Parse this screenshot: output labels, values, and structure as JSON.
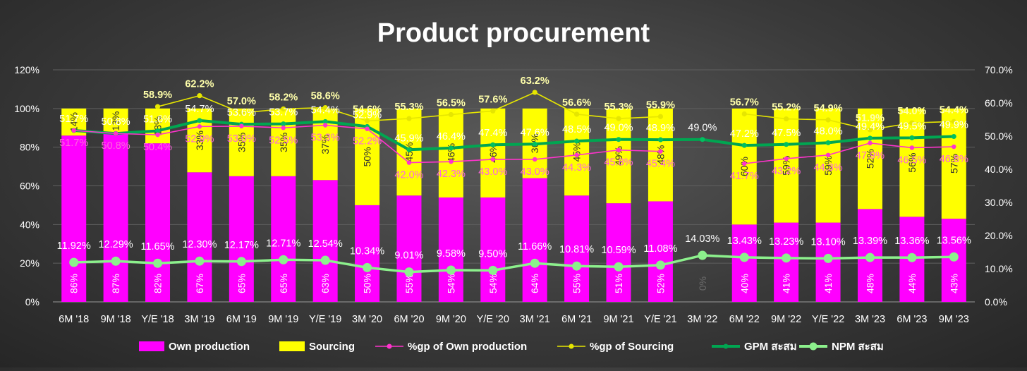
{
  "chart_data": {
    "type": "bar",
    "title": "Product procurement",
    "categories": [
      "6M '18",
      "9M '18",
      "Y/E '18",
      "3M '19",
      "6M '19",
      "9M '19",
      "Y/E '19",
      "3M '20",
      "6M '20",
      "9M '20",
      "Y/E '20",
      "3M '21",
      "6M '21",
      "9M '21",
      "Y/E '21",
      "3M '22",
      "6M '22",
      "9M '22",
      "Y/E '22",
      "3M '23",
      "6M '23",
      "9M '23"
    ],
    "left_axis": {
      "min": 0,
      "max": 1.2,
      "ticks": [
        "0%",
        "20%",
        "40%",
        "60%",
        "80%",
        "100%",
        "120%"
      ]
    },
    "right_axis": {
      "min": 0,
      "max": 0.7,
      "ticks": [
        "0.0%",
        "10.0%",
        "20.0%",
        "30.0%",
        "40.0%",
        "50.0%",
        "60.0%",
        "70.0%"
      ]
    },
    "series": [
      {
        "name": "Own production",
        "kind": "stacked-bar",
        "axis": "left",
        "color": "#ff00ff",
        "values": [
          0.86,
          0.87,
          0.82,
          0.67,
          0.65,
          0.65,
          0.63,
          0.5,
          0.55,
          0.54,
          0.54,
          0.64,
          0.55,
          0.51,
          0.52,
          0.0,
          0.4,
          0.41,
          0.41,
          0.48,
          0.44,
          0.43
        ],
        "labels": [
          "86%",
          "87%",
          "82%",
          "67%",
          "65%",
          "65%",
          "63%",
          "50%",
          "55%",
          "54%",
          "54%",
          "64%",
          "55%",
          "51%",
          "52%",
          "0%",
          "40%",
          "41%",
          "41%",
          "48%",
          "44%",
          "43%"
        ]
      },
      {
        "name": "Sourcing",
        "kind": "stacked-bar",
        "axis": "left",
        "color": "#ffff00",
        "values": [
          0.14,
          0.13,
          0.18,
          0.33,
          0.35,
          0.35,
          0.37,
          0.5,
          0.45,
          0.46,
          0.46,
          0.36,
          0.45,
          0.49,
          0.48,
          null,
          0.6,
          0.59,
          0.59,
          0.52,
          0.56,
          0.57
        ],
        "labels": [
          "14%",
          "13%",
          "18%",
          "33%",
          "35%",
          "35%",
          "37%",
          "50%",
          "45%",
          "46%",
          "46%",
          "36%",
          "45%",
          "49%",
          "48%",
          "",
          "60%",
          "59%",
          "59%",
          "52%",
          "56%",
          "57%"
        ]
      },
      {
        "name": "%gp of Own production",
        "kind": "line",
        "axis": "right",
        "color": "#ff33cc",
        "values": [
          0.517,
          0.508,
          0.504,
          0.529,
          0.53,
          0.525,
          0.533,
          0.522,
          0.42,
          0.423,
          0.43,
          0.43,
          0.443,
          0.458,
          0.454,
          null,
          0.417,
          0.432,
          0.443,
          0.479,
          0.465,
          0.468
        ],
        "labels": [
          "51.7%",
          "50.8%",
          "50.4%",
          "52.9%",
          "53.0%",
          "52.5%",
          "53.3%",
          "52.2%",
          "42.0%",
          "42.3%",
          "43.0%",
          "43.0%",
          "44.3%",
          "45.8%",
          "45.4%",
          "",
          "41.7%",
          "43.2%",
          "44.3%",
          "47.9%",
          "46.5%",
          "46.8%"
        ]
      },
      {
        "name": "%gp of Sourcing",
        "kind": "line",
        "axis": "right",
        "color": "#e6e600",
        "values": [
          null,
          null,
          0.589,
          0.622,
          0.57,
          0.582,
          0.586,
          0.546,
          0.553,
          0.565,
          0.576,
          0.632,
          0.566,
          0.553,
          0.559,
          null,
          0.567,
          0.552,
          0.549,
          0.519,
          0.54,
          0.544
        ],
        "labels": [
          "",
          "",
          "58.9%",
          "62.2%",
          "57.0%",
          "58.2%",
          "58.6%",
          "54.6%",
          "55.3%",
          "56.5%",
          "57.6%",
          "63.2%",
          "56.6%",
          "55.3%",
          "55.9%",
          "",
          "56.7%",
          "55.2%",
          "54.9%",
          "51.9%",
          "54.0%",
          "54.4%"
        ]
      },
      {
        "name": "GPM สะสม",
        "kind": "line",
        "axis": "right",
        "color": "#00a651",
        "values": [
          0.517,
          0.508,
          0.516,
          0.547,
          0.536,
          0.537,
          0.544,
          0.529,
          0.459,
          0.464,
          0.474,
          0.476,
          0.485,
          0.49,
          0.489,
          0.49,
          0.472,
          0.475,
          0.48,
          0.494,
          0.495,
          0.499
        ],
        "labels": [
          "51.7%",
          "50.8%",
          "51.6%",
          "54.7%",
          "53.6%",
          "53.7%",
          "54.4%",
          "52.9%",
          "45.9%",
          "46.4%",
          "47.4%",
          "47.6%",
          "48.5%",
          "49.0%",
          "48.9%",
          "49.0%",
          "47.2%",
          "47.5%",
          "48.0%",
          "49.4%",
          "49.5%",
          "49.9%"
        ]
      },
      {
        "name": "NPM สะสม",
        "kind": "line",
        "axis": "right",
        "color": "#8cf08c",
        "values": [
          0.1192,
          0.1229,
          0.1165,
          0.123,
          0.1217,
          0.1271,
          0.1254,
          0.1034,
          0.0901,
          0.0958,
          0.095,
          0.1166,
          0.1081,
          0.1059,
          0.1108,
          0.1403,
          0.1343,
          0.1323,
          0.131,
          0.1339,
          0.1336,
          0.1356
        ],
        "labels": [
          "11.92%",
          "12.29%",
          "11.65%",
          "12.30%",
          "12.17%",
          "12.71%",
          "12.54%",
          "10.34%",
          "9.01%",
          "9.58%",
          "9.50%",
          "11.66%",
          "10.81%",
          "10.59%",
          "11.08%",
          "14.03%",
          "13.43%",
          "13.23%",
          "13.10%",
          "13.39%",
          "13.36%",
          "13.56%"
        ]
      }
    ],
    "legend": [
      {
        "label": "Own production",
        "kind": "box",
        "color": "#ff00ff"
      },
      {
        "label": "Sourcing",
        "kind": "box",
        "color": "#ffff00"
      },
      {
        "label": "%gp of Own production",
        "kind": "line-marker",
        "color": "#ff33cc"
      },
      {
        "label": "%gp of Sourcing",
        "kind": "line-marker",
        "color": "#e6e600"
      },
      {
        "label": "GPM สะสม",
        "kind": "line-marker",
        "color": "#00a651"
      },
      {
        "label": "NPM สะสม",
        "kind": "line-marker",
        "color": "#8cf08c"
      }
    ],
    "legend_position": "bottom"
  }
}
